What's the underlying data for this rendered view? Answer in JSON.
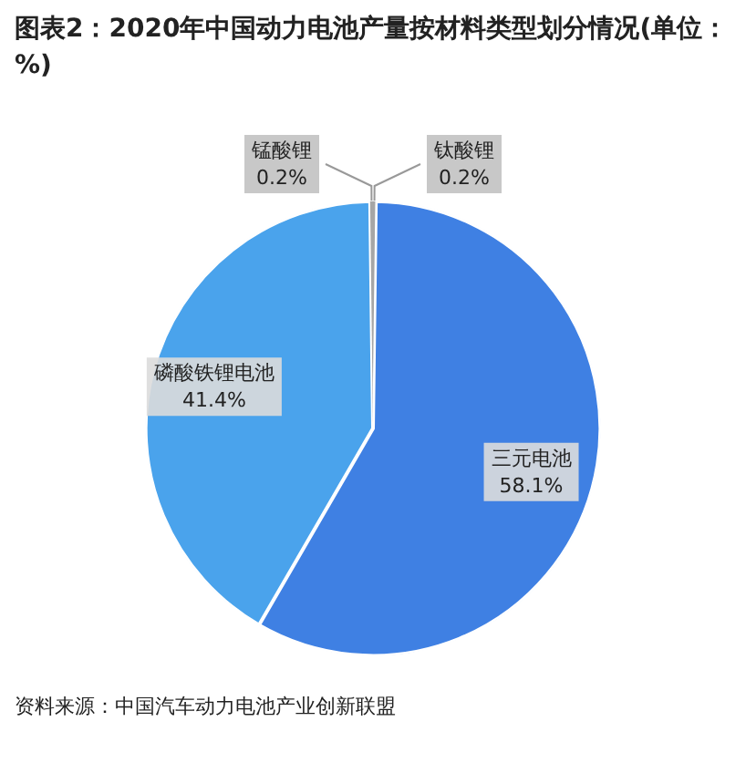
{
  "chart_data": {
    "type": "pie",
    "title": "图表2：2020年中国动力电池产量按材料类型划分情况(单位：%)",
    "categories": [
      "钛酸锂",
      "三元电池",
      "磷酸铁锂电池",
      "锰酸锂"
    ],
    "values": [
      0.2,
      58.1,
      41.4,
      0.2
    ],
    "colors": [
      "#a6a6a6",
      "#3f80e3",
      "#4aa3ec",
      "#a6a6a6"
    ],
    "value_labels": [
      "0.2%",
      "58.1%",
      "41.4%",
      "0.2%"
    ],
    "legend": false,
    "annotations": [
      "资料来源：中国汽车动力电池产业创新联盟"
    ]
  }
}
